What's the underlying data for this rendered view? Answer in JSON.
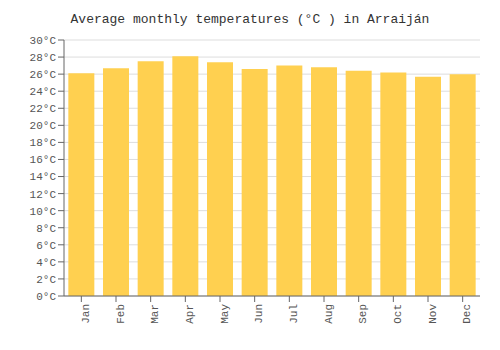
{
  "chart_data": {
    "type": "bar",
    "title": "Average monthly temperatures (°C ) in Arraiján",
    "categories": [
      "Jan",
      "Feb",
      "Mar",
      "Apr",
      "May",
      "Jun",
      "Jul",
      "Aug",
      "Sep",
      "Oct",
      "Nov",
      "Dec"
    ],
    "values": [
      26.1,
      26.7,
      27.5,
      28.1,
      27.4,
      26.6,
      27.0,
      26.8,
      26.4,
      26.2,
      25.7,
      26.0
    ],
    "color": "#FFD050",
    "ylim": [
      0,
      30
    ],
    "yticks": [
      {
        "value": 0,
        "label": "0°C"
      },
      {
        "value": 2,
        "label": "2°C"
      },
      {
        "value": 4,
        "label": "4°C"
      },
      {
        "value": 6,
        "label": "6°C"
      },
      {
        "value": 8,
        "label": "8°C"
      },
      {
        "value": 10,
        "label": "10°C"
      },
      {
        "value": 12,
        "label": "12°C"
      },
      {
        "value": 14,
        "label": "14°C"
      },
      {
        "value": 16,
        "label": "16°C"
      },
      {
        "value": 18,
        "label": "18°C"
      },
      {
        "value": 20,
        "label": "20°C"
      },
      {
        "value": 22,
        "label": "22°C"
      },
      {
        "value": 24,
        "label": "24°C"
      },
      {
        "value": 26,
        "label": "26°C"
      },
      {
        "value": 28,
        "label": "28°C"
      },
      {
        "value": 30,
        "label": "30°C"
      }
    ],
    "grid": true
  }
}
